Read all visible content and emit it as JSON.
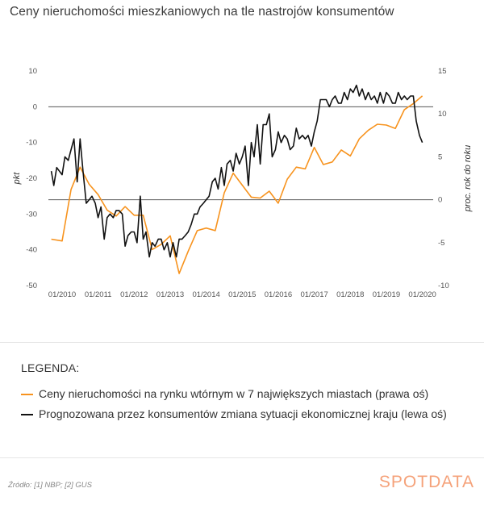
{
  "title": "Ceny nieruchomości mieszkaniowych na tle nastrojów konsumentów",
  "chart_data": {
    "type": "line",
    "left_axis": {
      "label": "pkt",
      "ticks": [
        10,
        0,
        -10,
        -20,
        -30,
        -40,
        -50
      ],
      "range": [
        -50,
        10
      ]
    },
    "right_axis": {
      "label": "proc. rok do roku",
      "ticks": [
        15,
        10,
        5,
        0,
        -5,
        -10
      ],
      "range": [
        -10,
        15
      ]
    },
    "x_ticks": [
      "01/2010",
      "01/2011",
      "01/2012",
      "01/2013",
      "01/2014",
      "01/2015",
      "01/2016",
      "01/2017",
      "01/2018",
      "01/2019",
      "01/2020"
    ],
    "x_range": [
      2009.62,
      2020.3
    ],
    "reference_lines": [
      {
        "axis": "left",
        "value": 0
      },
      {
        "axis": "right",
        "value": 0
      }
    ],
    "series": [
      {
        "name": "Ceny nieruchomości na rynku wtórnym w 7 największych miastach (prawa oś)",
        "axis": "right",
        "color": "#f7931e",
        "x": [
          2009.7,
          2010.0,
          2010.25,
          2010.5,
          2010.75,
          2011.0,
          2011.25,
          2011.5,
          2011.75,
          2012.0,
          2012.25,
          2012.5,
          2012.75,
          2013.0,
          2013.25,
          2013.5,
          2013.75,
          2014.0,
          2014.25,
          2014.5,
          2014.75,
          2015.0,
          2015.25,
          2015.5,
          2015.75,
          2016.0,
          2016.25,
          2016.5,
          2016.75,
          2017.0,
          2017.25,
          2017.5,
          2017.75,
          2018.0,
          2018.25,
          2018.5,
          2018.75,
          2019.0,
          2019.25,
          2019.5,
          2019.75,
          2020.0
        ],
        "y": [
          -4.6,
          -4.8,
          1.2,
          3.8,
          1.8,
          0.6,
          -1.2,
          -1.9,
          -0.8,
          -1.8,
          -1.8,
          -5.8,
          -5.2,
          -4.2,
          -8.6,
          -6.0,
          -3.6,
          -3.3,
          -3.6,
          0.8,
          3.1,
          1.7,
          0.3,
          0.2,
          1.0,
          -0.4,
          2.4,
          3.8,
          3.6,
          6.1,
          4.1,
          4.4,
          5.8,
          5.1,
          7.1,
          8.1,
          8.8,
          8.7,
          8.3,
          10.5,
          11.2,
          12.1
        ]
      },
      {
        "name": "Prognozowana przez konsumentów zmiana sytuacji ekonomicznej kraju (lewa oś)",
        "axis": "left",
        "color": "#111111",
        "x": [
          2009.7,
          2009.77,
          2009.85,
          2010.0,
          2010.08,
          2010.17,
          2010.25,
          2010.33,
          2010.42,
          2010.5,
          2010.58,
          2010.67,
          2010.75,
          2010.83,
          2010.92,
          2011.0,
          2011.08,
          2011.17,
          2011.25,
          2011.33,
          2011.42,
          2011.5,
          2011.58,
          2011.67,
          2011.75,
          2011.83,
          2011.92,
          2012.0,
          2012.08,
          2012.17,
          2012.25,
          2012.33,
          2012.42,
          2012.5,
          2012.58,
          2012.67,
          2012.75,
          2012.83,
          2012.92,
          2013.0,
          2013.08,
          2013.17,
          2013.25,
          2013.33,
          2013.42,
          2013.5,
          2013.58,
          2013.67,
          2013.75,
          2013.83,
          2013.92,
          2014.0,
          2014.08,
          2014.17,
          2014.25,
          2014.33,
          2014.42,
          2014.5,
          2014.58,
          2014.67,
          2014.75,
          2014.83,
          2014.92,
          2015.0,
          2015.08,
          2015.17,
          2015.25,
          2015.33,
          2015.42,
          2015.5,
          2015.58,
          2015.67,
          2015.75,
          2015.83,
          2015.92,
          2016.0,
          2016.08,
          2016.17,
          2016.25,
          2016.33,
          2016.42,
          2016.5,
          2016.58,
          2016.67,
          2016.75,
          2016.83,
          2016.92,
          2017.0,
          2017.08,
          2017.17,
          2017.25,
          2017.33,
          2017.42,
          2017.5,
          2017.58,
          2017.67,
          2017.75,
          2017.83,
          2017.92,
          2018.0,
          2018.08,
          2018.17,
          2018.25,
          2018.33,
          2018.42,
          2018.5,
          2018.58,
          2018.67,
          2018.75,
          2018.83,
          2018.92,
          2019.0,
          2019.08,
          2019.17,
          2019.25,
          2019.33,
          2019.42,
          2019.5,
          2019.58,
          2019.67,
          2019.75,
          2019.83,
          2019.92,
          2020.0
        ],
        "y": [
          -18,
          -22,
          -17,
          -19,
          -14,
          -15,
          -12,
          -9,
          -21,
          -9,
          -18,
          -27,
          -26,
          -25,
          -27,
          -31,
          -28,
          -37,
          -31,
          -30,
          -31,
          -29,
          -29,
          -30,
          -39,
          -36,
          -35,
          -35,
          -38,
          -25,
          -37,
          -35,
          -42,
          -38,
          -39,
          -37,
          -37,
          -40,
          -38,
          -42,
          -38,
          -42,
          -37,
          -37,
          -36,
          -35,
          -33,
          -30,
          -30,
          -28,
          -27,
          -26,
          -25,
          -21,
          -20,
          -23,
          -17,
          -22,
          -16,
          -15,
          -18,
          -13,
          -16,
          -14,
          -11,
          -22,
          -10,
          -14,
          -5,
          -16,
          -5,
          -5,
          -2,
          -14,
          -12,
          -7,
          -10,
          -8,
          -9,
          -12,
          -11,
          -6,
          -9,
          -8,
          -9,
          -8,
          -11,
          -7,
          -4,
          2,
          2,
          2,
          0,
          2,
          3,
          1,
          1,
          4,
          2,
          5,
          4,
          6,
          3,
          5,
          2,
          4,
          2,
          3,
          1,
          4,
          1,
          4,
          3,
          1,
          1,
          4,
          2,
          3,
          2,
          3,
          3,
          -4,
          -8,
          -10
        ]
      }
    ]
  },
  "legend": {
    "title": "LEGENDA:",
    "items": [
      {
        "label": "Ceny nieruchomości na rynku wtórnym w 7 największych miastach (prawa oś)",
        "color": "#f7931e"
      },
      {
        "label": "Prognozowana przez konsumentów zmiana sytuacji ekonomicznej kraju (lewa oś)",
        "color": "#111111"
      }
    ]
  },
  "source": "Źródło: [1] NBP; [2] GUS",
  "brand": "SPOTDATA"
}
